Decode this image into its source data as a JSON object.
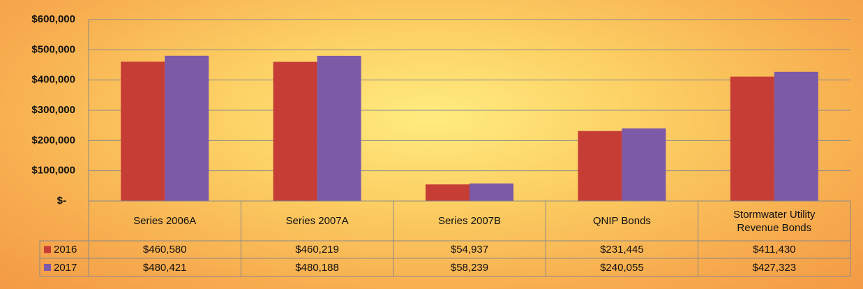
{
  "chart_data": {
    "type": "bar",
    "categories": [
      "Series 2006A",
      "Series 2007A",
      "Series 2007B",
      "QNIP Bonds",
      "Stormwater Utility Revenue Bonds"
    ],
    "series": [
      {
        "name": "2016",
        "color": "#c63d36",
        "values": [
          460580,
          460219,
          54937,
          231445,
          411430
        ],
        "value_labels": [
          "$460,580",
          "$460,219",
          "$54,937",
          "$231,445",
          "$411,430"
        ]
      },
      {
        "name": "2017",
        "color": "#7c5aa8",
        "values": [
          480421,
          480188,
          58239,
          240055,
          427323
        ],
        "value_labels": [
          "$480,421",
          "$480,188",
          "$58,239",
          "$240,055",
          "$427,323"
        ]
      }
    ],
    "ylim": [
      0,
      600000
    ],
    "yticks": [
      {
        "value": 0,
        "label": "$-"
      },
      {
        "value": 100000,
        "label": "$100,000"
      },
      {
        "value": 200000,
        "label": "$200,000"
      },
      {
        "value": 300000,
        "label": "$300,000"
      },
      {
        "value": 400000,
        "label": "$400,000"
      },
      {
        "value": 500000,
        "label": "$500,000"
      },
      {
        "value": 600000,
        "label": "$600,000"
      }
    ],
    "grid": true
  }
}
